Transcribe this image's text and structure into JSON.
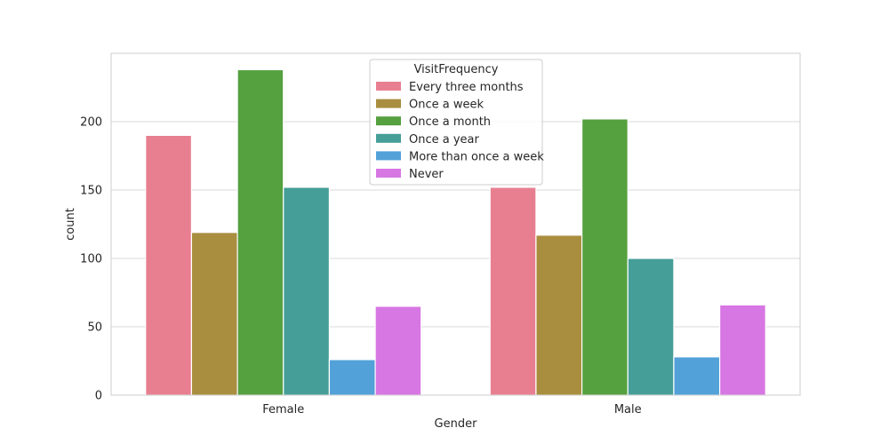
{
  "chart_data": {
    "type": "bar",
    "title": "",
    "xlabel": "Gender",
    "ylabel": "count",
    "categories": [
      "Female",
      "Male"
    ],
    "ylim": [
      0,
      250
    ],
    "yticks": [
      0,
      50,
      100,
      150,
      200
    ],
    "grid": true,
    "legend": {
      "title": "VisitFrequency",
      "placement": "top-center"
    },
    "series": [
      {
        "name": "Every three months",
        "color": "#e87f91",
        "values": [
          190,
          152
        ]
      },
      {
        "name": "Once a week",
        "color": "#a98e3f",
        "values": [
          119,
          117
        ]
      },
      {
        "name": "Once a month",
        "color": "#55a03f",
        "values": [
          238,
          202
        ]
      },
      {
        "name": "Once a year",
        "color": "#459e97",
        "values": [
          152,
          100
        ]
      },
      {
        "name": "More than once a week",
        "color": "#52a1d8",
        "values": [
          26,
          28
        ]
      },
      {
        "name": "Never",
        "color": "#d777e3",
        "values": [
          65,
          66
        ]
      }
    ]
  }
}
